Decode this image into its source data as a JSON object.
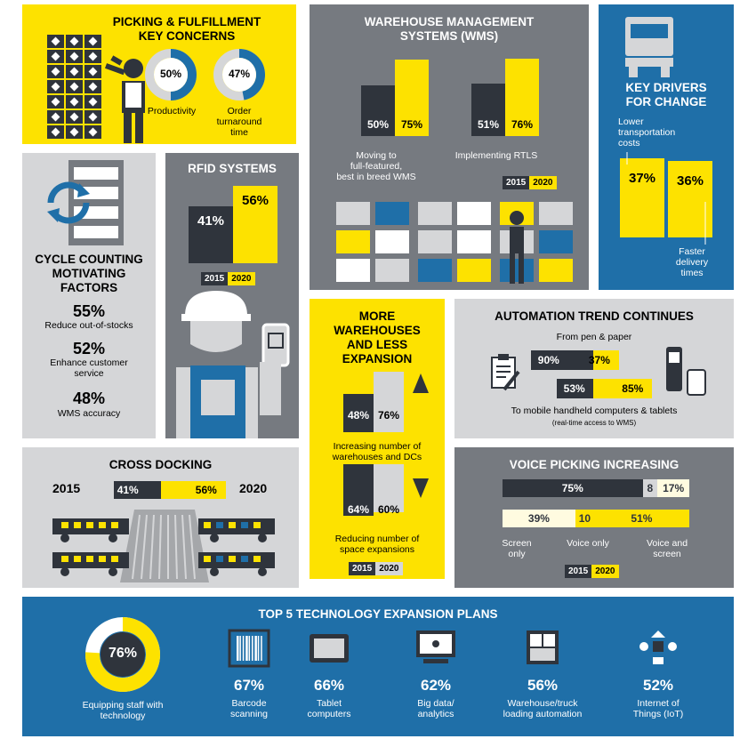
{
  "picking": {
    "title_line1": "PICKING & FULFILLMENT",
    "title_line2": "KEY CONCERNS",
    "donuts": [
      {
        "value": 50,
        "pct_label": "50%",
        "label_lines": [
          "Productivity"
        ]
      },
      {
        "value": 47,
        "pct_label": "47%",
        "label_lines": [
          "Order",
          "turnaround",
          "time"
        ]
      }
    ]
  },
  "wms": {
    "title_line1": "WAREHOUSE MANAGEMENT",
    "title_line2": "SYSTEMS (WMS)",
    "groups": [
      {
        "v2015": 50,
        "v2020": 75,
        "l2015": "50%",
        "l2020": "75%",
        "label_lines": [
          "Moving to",
          "full-featured,",
          "best in breed WMS"
        ]
      },
      {
        "v2015": 51,
        "v2020": 76,
        "l2015": "51%",
        "l2020": "76%",
        "label_lines": [
          "Implementing RTLS"
        ]
      }
    ]
  },
  "drivers": {
    "title_line1": "KEY DRIVERS",
    "title_line2": "FOR CHANGE",
    "top_label_lines": [
      "Lower",
      "transportation",
      "costs"
    ],
    "bottom_label_lines": [
      "Faster",
      "delivery",
      "times"
    ],
    "values": [
      {
        "value": 37,
        "label": "37%"
      },
      {
        "value": 36,
        "label": "36%"
      }
    ]
  },
  "cycle": {
    "title_line1": "CYCLE COUNTING",
    "title_line2": "MOTIVATING",
    "title_line3": "FACTORS",
    "items": [
      {
        "value": "55%",
        "label_lines": [
          "Reduce out-of-stocks"
        ]
      },
      {
        "value": "52%",
        "label_lines": [
          "Enhance customer",
          "service"
        ]
      },
      {
        "value": "48%",
        "label_lines": [
          "WMS accuracy"
        ]
      }
    ]
  },
  "rfid": {
    "title": "RFID SYSTEMS",
    "v2015": 41,
    "v2020": 56,
    "l2015": "41%",
    "l2020": "56%"
  },
  "more_wh": {
    "title_line1": "MORE",
    "title_line2": "WAREHOUSES",
    "title_line3": "AND LESS",
    "title_line4": "EXPANSION",
    "groups": [
      {
        "v2015": 48,
        "v2020": 76,
        "l2015": "48%",
        "l2020": "76%",
        "label_lines": [
          "Increasing number of",
          "warehouses and DCs"
        ]
      },
      {
        "v2015": 64,
        "v2020": 60,
        "l2015": "64%",
        "l2020": "60%",
        "label_lines": [
          "Reducing number of",
          "space expansions"
        ]
      }
    ]
  },
  "automation": {
    "title": "AUTOMATION TREND CONTINUES",
    "from_label": "From pen & paper",
    "to_label": "To mobile handheld computers & tablets",
    "to_sub": "(real-time access to WMS)",
    "rows": [
      {
        "v2015": 90,
        "v2020": 37,
        "l2015": "90%",
        "l2020": "37%"
      },
      {
        "v2015": 53,
        "v2020": 85,
        "l2015": "53%",
        "l2020": "85%"
      }
    ]
  },
  "cross": {
    "title": "CROSS DOCKING",
    "year_left": "2015",
    "year_right": "2020",
    "v2015": 41,
    "v2020": 56,
    "l2015": "41%",
    "l2020": "56%"
  },
  "voice": {
    "title": "VOICE PICKING INCREASING",
    "row2015": [
      {
        "value": 75,
        "label": "75%"
      },
      {
        "value": 8,
        "label": "8"
      },
      {
        "value": 17,
        "label": "17%"
      }
    ],
    "row2020": [
      {
        "value": 39,
        "label": "39%"
      },
      {
        "value": 10,
        "label": "10"
      },
      {
        "value": 51,
        "label": "51%"
      }
    ],
    "cat_labels": [
      [
        "Screen",
        "only"
      ],
      [
        "Voice only"
      ],
      [
        "Voice and",
        "screen"
      ]
    ]
  },
  "legend": {
    "y2015": "2015",
    "y2020": "2020"
  },
  "top5": {
    "title": "TOP 5 TECHNOLOGY EXPANSION PLANS",
    "donut_value": 76,
    "donut_label": "76%",
    "donut_caption_lines": [
      "Equipping staff with",
      "technology"
    ],
    "items": [
      {
        "icon": "barcode-icon",
        "value": "67%",
        "label_lines": [
          "Barcode",
          "scanning"
        ]
      },
      {
        "icon": "tablet-icon",
        "value": "66%",
        "label_lines": [
          "Tablet",
          "computers"
        ]
      },
      {
        "icon": "monitor-network-icon",
        "value": "62%",
        "label_lines": [
          "Big data/",
          "analytics"
        ]
      },
      {
        "icon": "truck-loading-icon",
        "value": "56%",
        "label_lines": [
          "Warehouse/truck",
          "loading automation"
        ]
      },
      {
        "icon": "iot-icon",
        "value": "52%",
        "label_lines": [
          "Internet of",
          "Things (IoT)"
        ]
      }
    ]
  },
  "chart_data": [
    {
      "type": "pie",
      "title": "PICKING & FULFILLMENT KEY CONCERNS",
      "categories": [
        "Productivity",
        "Order turnaround time"
      ],
      "values": [
        50,
        47
      ]
    },
    {
      "type": "bar",
      "title": "WAREHOUSE MANAGEMENT SYSTEMS (WMS)",
      "categories": [
        "Moving to full-featured, best in breed WMS",
        "Implementing RTLS"
      ],
      "series": [
        {
          "name": "2015",
          "values": [
            50,
            51
          ]
        },
        {
          "name": "2020",
          "values": [
            75,
            76
          ]
        }
      ]
    },
    {
      "type": "bar",
      "title": "KEY DRIVERS FOR CHANGE",
      "categories": [
        "Lower transportation costs",
        "Faster delivery times"
      ],
      "values": [
        37,
        36
      ]
    },
    {
      "type": "table",
      "title": "CYCLE COUNTING MOTIVATING FACTORS",
      "categories": [
        "Reduce out-of-stocks",
        "Enhance customer service",
        "WMS accuracy"
      ],
      "values": [
        55,
        52,
        48
      ]
    },
    {
      "type": "bar",
      "title": "RFID SYSTEMS",
      "series": [
        {
          "name": "2015",
          "values": [
            41
          ]
        },
        {
          "name": "2020",
          "values": [
            56
          ]
        }
      ]
    },
    {
      "type": "bar",
      "title": "MORE WAREHOUSES AND LESS EXPANSION",
      "categories": [
        "Increasing number of warehouses and DCs",
        "Reducing number of space expansions"
      ],
      "series": [
        {
          "name": "2015",
          "values": [
            48,
            64
          ]
        },
        {
          "name": "2020",
          "values": [
            76,
            60
          ]
        }
      ]
    },
    {
      "type": "bar",
      "title": "AUTOMATION TREND CONTINUES",
      "categories": [
        "From pen & paper",
        "To mobile handheld computers & tablets"
      ],
      "series": [
        {
          "name": "2015",
          "values": [
            90,
            53
          ]
        },
        {
          "name": "2020",
          "values": [
            37,
            85
          ]
        }
      ]
    },
    {
      "type": "bar",
      "title": "CROSS DOCKING",
      "series": [
        {
          "name": "2015",
          "values": [
            41
          ]
        },
        {
          "name": "2020",
          "values": [
            56
          ]
        }
      ]
    },
    {
      "type": "bar",
      "title": "VOICE PICKING INCREASING",
      "categories": [
        "Screen only",
        "Voice only",
        "Voice and screen"
      ],
      "series": [
        {
          "name": "2015",
          "values": [
            75,
            8,
            17
          ]
        },
        {
          "name": "2020",
          "values": [
            39,
            10,
            51
          ]
        }
      ]
    },
    {
      "type": "bar",
      "title": "TOP 5 TECHNOLOGY EXPANSION PLANS",
      "categories": [
        "Equipping staff with technology",
        "Barcode scanning",
        "Tablet computers",
        "Big data/ analytics",
        "Warehouse/truck loading automation",
        "Internet of Things (IoT)"
      ],
      "values": [
        76,
        67,
        66,
        62,
        56,
        52
      ]
    }
  ]
}
